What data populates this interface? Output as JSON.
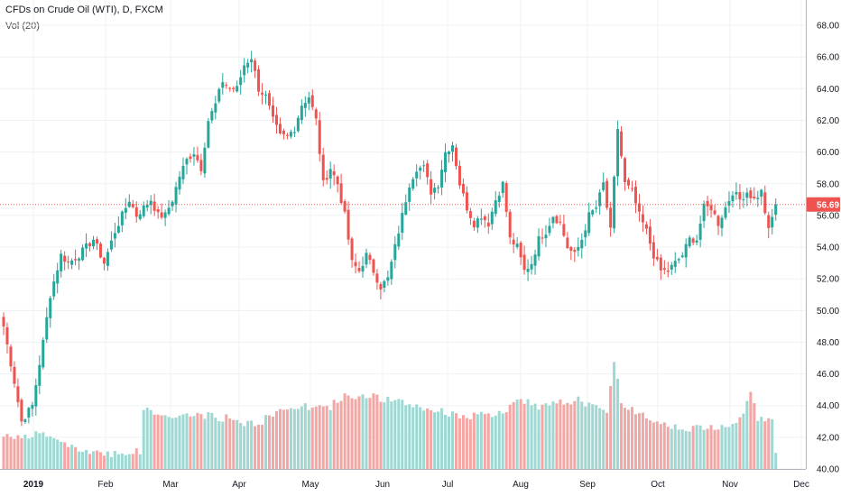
{
  "legend": {
    "symbol": "CFDs on Crude Oil (WTI), D, FXCM",
    "volume": "Vol (20)"
  },
  "colors": {
    "up": "#26a69a",
    "down": "#ef5350",
    "volume_up": "#9fd8d2",
    "volume_down": "#f4a6a4",
    "grid": "#eef0f4",
    "axis_text": "#131722",
    "price_line": "#ef5350"
  },
  "chart_data": {
    "type": "candlestick",
    "title": "CFDs on Crude Oil (WTI), D, FXCM",
    "indicator": "Vol (20)",
    "x_tick_labels": [
      "2019",
      "Feb",
      "Mar",
      "Apr",
      "May",
      "Jun",
      "Jul",
      "Aug",
      "Sep",
      "Oct",
      "Nov",
      "Dec"
    ],
    "x_tick_bold": [
      "2019"
    ],
    "y_ticks": [
      40,
      42,
      44,
      46,
      48,
      50,
      52,
      54,
      56,
      58,
      60,
      62,
      64,
      66,
      68
    ],
    "y_tick_labels": [
      "40.00",
      "42.00",
      "44.00",
      "46.00",
      "48.00",
      "50.00",
      "52.00",
      "54.00",
      "56.00",
      "58.00",
      "60.00",
      "62.00",
      "64.00",
      "66.00",
      "68.00"
    ],
    "ylim": [
      40,
      69.6
    ],
    "last_price": 56.69,
    "last_price_label": "56.69",
    "grid": true,
    "keypoints": [
      [
        0,
        49.0
      ],
      [
        3,
        45.5
      ],
      [
        5,
        43.0
      ],
      [
        8,
        44.0
      ],
      [
        11,
        48.0
      ],
      [
        13,
        51.0
      ],
      [
        16,
        53.5
      ],
      [
        18,
        53.0
      ],
      [
        21,
        53.5
      ],
      [
        23,
        54.0
      ],
      [
        25,
        54.5
      ],
      [
        28,
        53.0
      ],
      [
        31,
        55.0
      ],
      [
        33,
        56.0
      ],
      [
        35,
        57.0
      ],
      [
        37,
        56.0
      ],
      [
        39,
        56.5
      ],
      [
        41,
        57.0
      ],
      [
        43,
        56.0
      ],
      [
        45,
        56.0
      ],
      [
        47,
        57.0
      ],
      [
        49,
        58.5
      ],
      [
        51,
        59.5
      ],
      [
        53,
        60.0
      ],
      [
        55,
        59.0
      ],
      [
        57,
        62.0
      ],
      [
        59,
        63.0
      ],
      [
        61,
        64.5
      ],
      [
        63,
        64.0
      ],
      [
        65,
        64.0
      ],
      [
        67,
        65.5
      ],
      [
        69,
        66.0
      ],
      [
        71,
        64.0
      ],
      [
        73,
        63.5
      ],
      [
        75,
        62.0
      ],
      [
        77,
        61.0
      ],
      [
        79,
        61.0
      ],
      [
        81,
        61.5
      ],
      [
        83,
        63.0
      ],
      [
        85,
        63.5
      ],
      [
        87,
        62.0
      ],
      [
        89,
        58.0
      ],
      [
        91,
        59.0
      ],
      [
        93,
        58.0
      ],
      [
        95,
        56.0
      ],
      [
        97,
        53.0
      ],
      [
        99,
        52.5
      ],
      [
        101,
        53.5
      ],
      [
        103,
        52.5
      ],
      [
        105,
        51.5
      ],
      [
        107,
        52.0
      ],
      [
        109,
        54.0
      ],
      [
        111,
        56.0
      ],
      [
        113,
        58.0
      ],
      [
        115,
        59.0
      ],
      [
        117,
        59.0
      ],
      [
        119,
        57.5
      ],
      [
        121,
        58.0
      ],
      [
        123,
        60.0
      ],
      [
        125,
        60.5
      ],
      [
        127,
        58.0
      ],
      [
        129,
        56.5
      ],
      [
        131,
        55.5
      ],
      [
        133,
        56.0
      ],
      [
        135,
        55.5
      ],
      [
        137,
        57.0
      ],
      [
        139,
        58.0
      ],
      [
        141,
        54.5
      ],
      [
        143,
        54.0
      ],
      [
        145,
        52.5
      ],
      [
        147,
        53.0
      ],
      [
        149,
        54.5
      ],
      [
        151,
        55.0
      ],
      [
        153,
        56.0
      ],
      [
        155,
        55.5
      ],
      [
        157,
        54.0
      ],
      [
        159,
        53.5
      ],
      [
        161,
        54.5
      ],
      [
        163,
        56.0
      ],
      [
        165,
        56.5
      ],
      [
        167,
        58.0
      ],
      [
        169,
        55.0
      ],
      [
        171,
        61.5
      ],
      [
        173,
        58.0
      ],
      [
        175,
        57.5
      ],
      [
        177,
        56.0
      ],
      [
        179,
        55.0
      ],
      [
        181,
        53.5
      ],
      [
        183,
        52.5
      ],
      [
        185,
        52.5
      ],
      [
        187,
        53.0
      ],
      [
        189,
        53.5
      ],
      [
        191,
        54.5
      ],
      [
        193,
        54.5
      ],
      [
        195,
        56.5
      ],
      [
        197,
        56.5
      ],
      [
        199,
        55.5
      ],
      [
        201,
        56.5
      ],
      [
        203,
        57.5
      ],
      [
        205,
        57.0
      ],
      [
        207,
        57.5
      ],
      [
        209,
        57.0
      ],
      [
        211,
        57.5
      ],
      [
        213,
        55.0
      ],
      [
        215,
        56.7
      ]
    ],
    "volume_keypoints": [
      [
        0,
        42.2
      ],
      [
        8,
        42.0
      ],
      [
        10,
        42.3
      ],
      [
        15,
        41.8
      ],
      [
        20,
        41.2
      ],
      [
        30,
        41.0
      ],
      [
        38,
        41.1
      ],
      [
        39,
        43.8
      ],
      [
        45,
        43.3
      ],
      [
        55,
        43.4
      ],
      [
        62,
        43.2
      ],
      [
        70,
        42.8
      ],
      [
        80,
        44.0
      ],
      [
        90,
        43.8
      ],
      [
        95,
        44.6
      ],
      [
        100,
        44.7
      ],
      [
        110,
        44.2
      ],
      [
        120,
        43.7
      ],
      [
        130,
        43.3
      ],
      [
        140,
        43.5
      ],
      [
        143,
        44.5
      ],
      [
        150,
        43.9
      ],
      [
        160,
        44.4
      ],
      [
        168,
        43.5
      ],
      [
        170,
        47.0
      ],
      [
        172,
        44.1
      ],
      [
        180,
        43.2
      ],
      [
        190,
        42.5
      ],
      [
        200,
        42.7
      ],
      [
        205,
        43.2
      ],
      [
        208,
        44.8
      ],
      [
        210,
        43.2
      ],
      [
        214,
        43.1
      ],
      [
        215,
        40.8
      ]
    ]
  }
}
